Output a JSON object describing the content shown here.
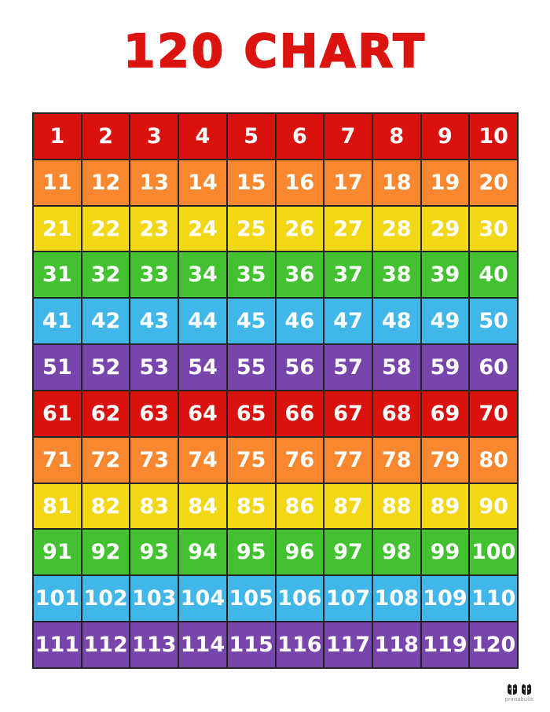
{
  "title": "120 CHART",
  "title_color": "#dc1410",
  "grid": {
    "rows": 12,
    "cols": 10,
    "numbers": [
      1,
      2,
      3,
      4,
      5,
      6,
      7,
      8,
      9,
      10,
      11,
      12,
      13,
      14,
      15,
      16,
      17,
      18,
      19,
      20,
      21,
      22,
      23,
      24,
      25,
      26,
      27,
      28,
      29,
      30,
      31,
      32,
      33,
      34,
      35,
      36,
      37,
      38,
      39,
      40,
      41,
      42,
      43,
      44,
      45,
      46,
      47,
      48,
      49,
      50,
      51,
      52,
      53,
      54,
      55,
      56,
      57,
      58,
      59,
      60,
      61,
      62,
      63,
      64,
      65,
      66,
      67,
      68,
      69,
      70,
      71,
      72,
      73,
      74,
      75,
      76,
      77,
      78,
      79,
      80,
      81,
      82,
      83,
      84,
      85,
      86,
      87,
      88,
      89,
      90,
      91,
      92,
      93,
      94,
      95,
      96,
      97,
      98,
      99,
      100,
      101,
      102,
      103,
      104,
      105,
      106,
      107,
      108,
      109,
      110,
      111,
      112,
      113,
      114,
      115,
      116,
      117,
      118,
      119,
      120
    ],
    "row_colors": [
      "#d9120e",
      "#f8872f",
      "#f2d717",
      "#41c22e",
      "#41b6e9",
      "#7845ad",
      "#d9120e",
      "#f8872f",
      "#f2d717",
      "#41c22e",
      "#41b6e9",
      "#7845ad"
    ],
    "number_color": "#ffffff",
    "border_color": "#232323"
  },
  "watermark": {
    "brand": "printabulls",
    "logo": "two-bulldog-faces-icon"
  }
}
